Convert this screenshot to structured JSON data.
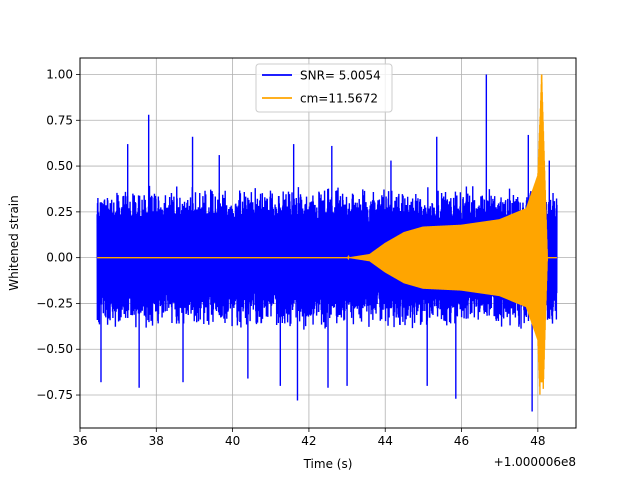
{
  "chart_data": {
    "type": "line",
    "title": "",
    "xlabel": "Time (s)",
    "ylabel": "Whitened strain",
    "x_offset_label": "+1.000006e8",
    "xlim": [
      36.0,
      49.0
    ],
    "ylim": [
      -0.93,
      1.09
    ],
    "x_ticks": [
      36,
      38,
      40,
      42,
      44,
      46,
      48
    ],
    "x_tick_labels": [
      "36",
      "38",
      "40",
      "42",
      "44",
      "46",
      "48"
    ],
    "y_ticks": [
      -0.75,
      -0.5,
      -0.25,
      0.0,
      0.25,
      0.5,
      0.75,
      1.0
    ],
    "y_tick_labels": [
      "−0.75",
      "−0.50",
      "−0.25",
      "0.00",
      "0.25",
      "0.50",
      "0.75",
      "1.00"
    ],
    "grid": true,
    "legend_position": "top-center",
    "series": [
      {
        "name": "SNR= 5.0054",
        "color": "#0000ff",
        "kind": "noise",
        "x_range": [
          36.45,
          48.5
        ],
        "typical_amplitude": 0.4,
        "peaks_high": [
          {
            "x": 37.25,
            "y": 0.62
          },
          {
            "x": 37.8,
            "y": 0.78
          },
          {
            "x": 38.95,
            "y": 0.66
          },
          {
            "x": 39.65,
            "y": 0.56
          },
          {
            "x": 41.6,
            "y": 0.62
          },
          {
            "x": 42.6,
            "y": 0.61
          },
          {
            "x": 44.15,
            "y": 0.53
          },
          {
            "x": 45.35,
            "y": 0.66
          },
          {
            "x": 46.65,
            "y": 1.0
          },
          {
            "x": 47.75,
            "y": 0.67
          },
          {
            "x": 48.3,
            "y": 0.53
          }
        ],
        "peaks_low": [
          {
            "x": 36.55,
            "y": -0.68
          },
          {
            "x": 37.55,
            "y": -0.71
          },
          {
            "x": 38.7,
            "y": -0.68
          },
          {
            "x": 40.4,
            "y": -0.66
          },
          {
            "x": 41.25,
            "y": -0.7
          },
          {
            "x": 41.7,
            "y": -0.78
          },
          {
            "x": 42.5,
            "y": -0.71
          },
          {
            "x": 43.0,
            "y": -0.7
          },
          {
            "x": 45.1,
            "y": -0.7
          },
          {
            "x": 45.85,
            "y": -0.77
          },
          {
            "x": 47.85,
            "y": -0.84
          }
        ]
      },
      {
        "name": "cm=11.5672",
        "color": "#ffa500",
        "kind": "chirp",
        "x_range": [
          36.45,
          48.5
        ],
        "merger_time": 48.1,
        "peak_value": 1.0,
        "min_value": -0.68,
        "envelope": [
          {
            "x": 36.45,
            "y": 0.0
          },
          {
            "x": 43.0,
            "y": 0.0
          },
          {
            "x": 43.6,
            "y": 0.02
          },
          {
            "x": 44.0,
            "y": 0.08
          },
          {
            "x": 44.5,
            "y": 0.14
          },
          {
            "x": 45.0,
            "y": 0.17
          },
          {
            "x": 46.0,
            "y": 0.18
          },
          {
            "x": 47.0,
            "y": 0.21
          },
          {
            "x": 47.7,
            "y": 0.27
          },
          {
            "x": 48.0,
            "y": 0.45
          },
          {
            "x": 48.1,
            "y": 1.0
          },
          {
            "x": 48.25,
            "y": 0.0
          },
          {
            "x": 48.5,
            "y": 0.0
          }
        ]
      }
    ]
  }
}
